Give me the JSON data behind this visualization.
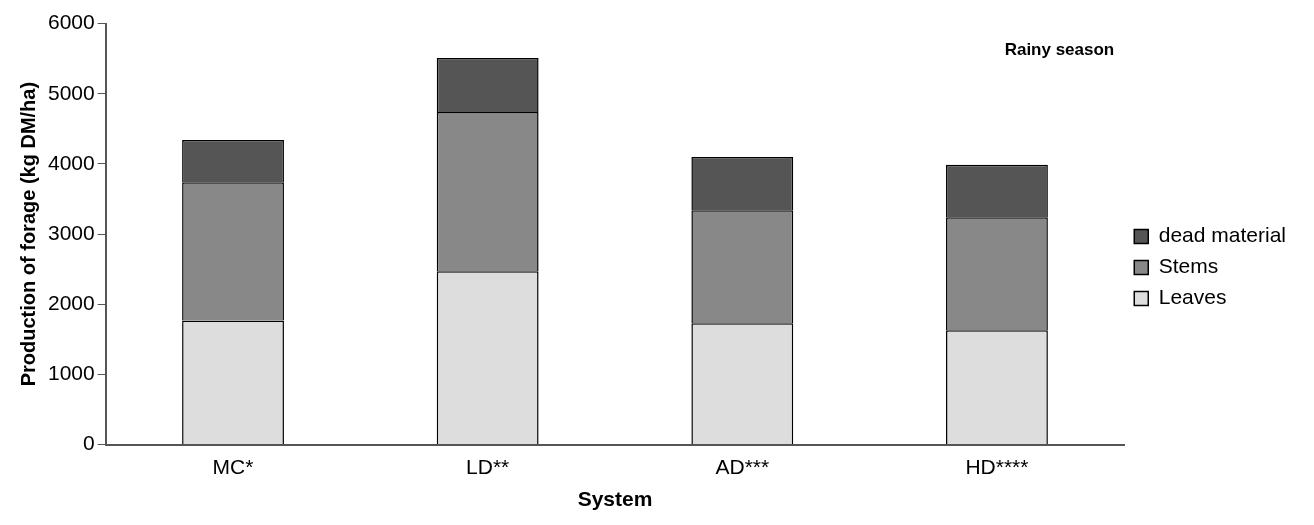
{
  "chart_data": {
    "type": "bar",
    "title": "Rainy season",
    "xlabel": "System",
    "ylabel": "Production of forage (kg DM/ha)",
    "categories": [
      "MC*",
      "LD**",
      "AD***",
      "HD****"
    ],
    "stacked": true,
    "series": [
      {
        "name": "Leaves",
        "color": "#dddddd",
        "values": [
          1770,
          2470,
          1730,
          1630
        ]
      },
      {
        "name": "Stems",
        "color": "#888888",
        "values": [
          1970,
          2270,
          1610,
          1610
        ]
      },
      {
        "name": "dead material",
        "color": "#555555",
        "values": [
          600,
          770,
          760,
          750
        ]
      }
    ],
    "ylim": [
      0,
      6000
    ],
    "yticks": [
      0,
      1000,
      2000,
      3000,
      4000,
      5000,
      6000
    ],
    "grid": false,
    "legend": "right"
  }
}
